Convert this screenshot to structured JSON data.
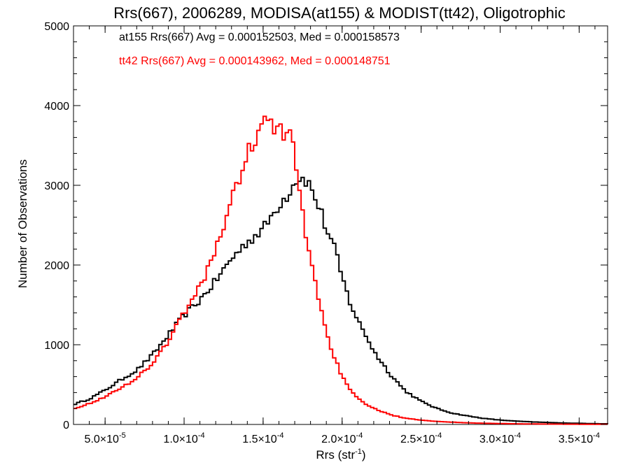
{
  "chart_data": {
    "type": "histogram",
    "title": "Rrs(667), 2006289, MODISA(at155) & MODIST(tt42), Oligotrophic",
    "xlabel": {
      "base": "Rrs (str",
      "sup": "-1",
      "end": ")"
    },
    "ylabel": "Number of Observations",
    "xlim": [
      3e-05,
      0.000368
    ],
    "ylim": [
      0,
      5000
    ],
    "yticks": [
      0,
      1000,
      2000,
      3000,
      4000,
      5000
    ],
    "xticks": [
      {
        "value": 5e-05,
        "mant": "5.0",
        "times": "×",
        "base": "10",
        "exp": "-5"
      },
      {
        "value": 0.0001,
        "mant": "1.0",
        "times": "×",
        "base": "10",
        "exp": "-4"
      },
      {
        "value": 0.00015,
        "mant": "1.5",
        "times": "×",
        "base": "10",
        "exp": "-4"
      },
      {
        "value": 0.0002,
        "mant": "2.0",
        "times": "×",
        "base": "10",
        "exp": "-4"
      },
      {
        "value": 0.00025,
        "mant": "2.5",
        "times": "×",
        "base": "10",
        "exp": "-4"
      },
      {
        "value": 0.0003,
        "mant": "3.0",
        "times": "×",
        "base": "10",
        "exp": "-4"
      },
      {
        "value": 0.00035,
        "mant": "3.5",
        "times": "×",
        "base": "10",
        "exp": "-4"
      }
    ],
    "grid": false,
    "legend": "top-left annotations",
    "annotations": [
      "at155 Rrs(667) Avg = 0.000152503, Med = 0.000158573",
      "tt42 Rrs(667) Avg = 0.000143962, Med = 0.000148751"
    ],
    "series": [
      {
        "color": "#000000",
        "x": [
          3e-05,
          4e-05,
          5e-05,
          6e-05,
          7e-05,
          8e-05,
          9e-05,
          0.0001,
          0.00011,
          0.00012,
          0.00013,
          0.00014,
          0.00015,
          0.000155,
          0.00016,
          0.000165,
          0.00017,
          0.000173,
          0.000178,
          0.000182,
          0.000186,
          0.00019,
          0.000195,
          0.0002,
          0.000205,
          0.00021,
          0.000215,
          0.00022,
          0.00023,
          0.00024,
          0.00025,
          0.00026,
          0.00027,
          0.00028,
          0.00029,
          0.0003,
          0.00031,
          0.00032,
          0.00033,
          0.00034,
          0.00035,
          0.00036,
          0.000368
        ],
        "y": [
          250,
          320,
          430,
          560,
          680,
          870,
          1120,
          1370,
          1560,
          1800,
          2080,
          2290,
          2450,
          2600,
          2760,
          2870,
          3050,
          3100,
          3060,
          2880,
          2700,
          2450,
          2220,
          1840,
          1530,
          1300,
          1120,
          920,
          640,
          420,
          290,
          200,
          140,
          105,
          75,
          55,
          42,
          32,
          25,
          18,
          14,
          10,
          8
        ]
      },
      {
        "color": "#ff0000",
        "x": [
          3e-05,
          4e-05,
          5e-05,
          6e-05,
          7e-05,
          8e-05,
          9e-05,
          0.0001,
          0.00011,
          0.00012,
          0.00013,
          0.00014,
          0.000145,
          0.00015,
          0.000153,
          0.000157,
          0.00016,
          0.000163,
          0.000167,
          0.00017,
          0.000173,
          0.000176,
          0.00018,
          0.000185,
          0.00019,
          0.000195,
          0.0002,
          0.000205,
          0.00021,
          0.00022,
          0.00023,
          0.00024,
          0.00025,
          0.00026,
          0.00027,
          0.00028,
          0.00029,
          0.0003,
          0.00031,
          0.00032,
          0.00033,
          0.00034,
          0.00035,
          0.00036,
          0.000368
        ],
        "y": [
          200,
          260,
          350,
          450,
          590,
          760,
          1050,
          1400,
          1720,
          2200,
          2800,
          3400,
          3600,
          3750,
          3850,
          3680,
          3700,
          3600,
          3680,
          3400,
          2900,
          2500,
          2100,
          1600,
          1150,
          850,
          600,
          430,
          320,
          200,
          125,
          80,
          55,
          38,
          28,
          20,
          15,
          11,
          8,
          6,
          5,
          4,
          3,
          2,
          2
        ]
      }
    ]
  }
}
